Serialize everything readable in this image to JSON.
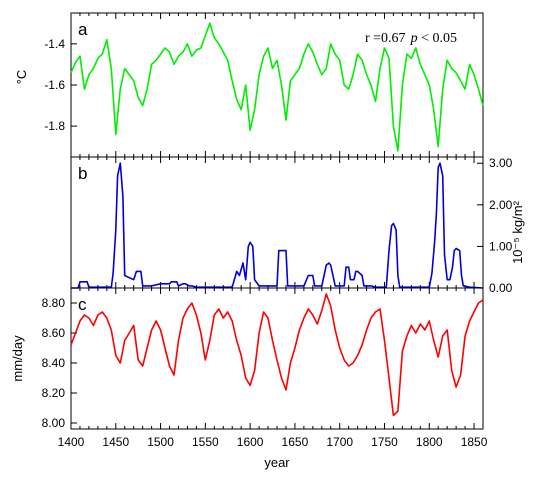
{
  "chart_data": {
    "type": "line",
    "x_axis": {
      "label": "year",
      "range": [
        1400,
        1860
      ],
      "ticks": [
        1400,
        1450,
        1500,
        1550,
        1600,
        1650,
        1700,
        1750,
        1800,
        1850
      ]
    },
    "panels": [
      {
        "letter": "a",
        "ylabel": "°C",
        "ylabel_side": "left",
        "ylim": [
          -1.95,
          -1.25
        ],
        "yticks": [
          -1.4,
          -1.6,
          -1.8
        ],
        "yticklabels": [
          "-1.4",
          "-1.6",
          "-1.8"
        ],
        "annotation": {
          "r": "r =0.67",
          "p": "p",
          "rest": " < 0.05"
        },
        "color": "#00ee00",
        "series": {
          "x": [
            1400,
            1405,
            1410,
            1415,
            1420,
            1425,
            1430,
            1435,
            1440,
            1445,
            1450,
            1455,
            1460,
            1465,
            1470,
            1475,
            1480,
            1485,
            1490,
            1495,
            1500,
            1505,
            1510,
            1515,
            1520,
            1525,
            1530,
            1535,
            1540,
            1545,
            1550,
            1555,
            1560,
            1565,
            1570,
            1575,
            1580,
            1585,
            1590,
            1595,
            1600,
            1605,
            1610,
            1615,
            1620,
            1625,
            1630,
            1635,
            1640,
            1645,
            1650,
            1655,
            1660,
            1665,
            1670,
            1675,
            1680,
            1685,
            1690,
            1695,
            1700,
            1705,
            1710,
            1715,
            1720,
            1725,
            1730,
            1735,
            1740,
            1745,
            1750,
            1755,
            1760,
            1765,
            1770,
            1775,
            1780,
            1785,
            1790,
            1795,
            1800,
            1805,
            1810,
            1815,
            1820,
            1825,
            1830,
            1835,
            1840,
            1845,
            1850,
            1855,
            1860
          ],
          "values": [
            -1.54,
            -1.49,
            -1.46,
            -1.62,
            -1.55,
            -1.52,
            -1.47,
            -1.45,
            -1.38,
            -1.52,
            -1.84,
            -1.62,
            -1.52,
            -1.55,
            -1.58,
            -1.66,
            -1.7,
            -1.62,
            -1.5,
            -1.48,
            -1.45,
            -1.42,
            -1.44,
            -1.5,
            -1.46,
            -1.44,
            -1.4,
            -1.46,
            -1.43,
            -1.42,
            -1.36,
            -1.3,
            -1.37,
            -1.4,
            -1.44,
            -1.48,
            -1.58,
            -1.67,
            -1.72,
            -1.6,
            -1.82,
            -1.72,
            -1.55,
            -1.46,
            -1.42,
            -1.52,
            -1.48,
            -1.6,
            -1.77,
            -1.58,
            -1.55,
            -1.52,
            -1.45,
            -1.4,
            -1.44,
            -1.5,
            -1.55,
            -1.52,
            -1.4,
            -1.45,
            -1.48,
            -1.6,
            -1.62,
            -1.55,
            -1.45,
            -1.48,
            -1.55,
            -1.6,
            -1.68,
            -1.52,
            -1.42,
            -1.47,
            -1.8,
            -1.92,
            -1.6,
            -1.45,
            -1.47,
            -1.42,
            -1.5,
            -1.55,
            -1.6,
            -1.72,
            -1.9,
            -1.62,
            -1.48,
            -1.52,
            -1.54,
            -1.58,
            -1.62,
            -1.5,
            -1.55,
            -1.62,
            -1.7
          ]
        }
      },
      {
        "letter": "b",
        "ylabel": "10⁻⁵ kg/m²",
        "ylabel_side": "right",
        "ylim": [
          0,
          3.15
        ],
        "yticks": [
          0,
          1,
          2,
          3
        ],
        "yticklabels": [
          "0.00",
          "1.00",
          "2.00",
          "3.00"
        ],
        "color": "#0000dd",
        "series": {
          "x": [
            1400,
            1408,
            1410,
            1418,
            1420,
            1445,
            1447,
            1450,
            1452,
            1455,
            1458,
            1460,
            1470,
            1473,
            1478,
            1480,
            1490,
            1500,
            1510,
            1512,
            1518,
            1520,
            1525,
            1528,
            1532,
            1535,
            1540,
            1580,
            1585,
            1588,
            1592,
            1595,
            1598,
            1600,
            1603,
            1605,
            1610,
            1630,
            1632,
            1640,
            1642,
            1650,
            1660,
            1665,
            1670,
            1672,
            1680,
            1685,
            1688,
            1690,
            1695,
            1697,
            1705,
            1707,
            1710,
            1712,
            1716,
            1718,
            1720,
            1725,
            1727,
            1735,
            1740,
            1752,
            1755,
            1758,
            1760,
            1763,
            1765,
            1767,
            1770,
            1775,
            1800,
            1803,
            1806,
            1808,
            1810,
            1812,
            1815,
            1817,
            1820,
            1823,
            1826,
            1828,
            1830,
            1834,
            1836,
            1838,
            1845,
            1860
          ],
          "values": [
            0.0,
            0.0,
            0.15,
            0.15,
            0.02,
            0.02,
            0.35,
            1.4,
            2.7,
            3.0,
            2.2,
            0.3,
            0.2,
            0.4,
            0.4,
            0.05,
            0.05,
            0.1,
            0.1,
            0.15,
            0.15,
            0.05,
            0.1,
            0.1,
            0.05,
            0.05,
            0.02,
            0.02,
            0.4,
            0.3,
            0.6,
            0.2,
            1.0,
            1.1,
            1.0,
            0.2,
            0.05,
            0.05,
            0.9,
            0.9,
            0.05,
            0.05,
            0.05,
            0.3,
            0.3,
            0.05,
            0.05,
            0.55,
            0.6,
            0.55,
            0.05,
            0.05,
            0.05,
            0.5,
            0.5,
            0.2,
            0.2,
            0.4,
            0.4,
            0.3,
            0.05,
            0.05,
            0.02,
            0.02,
            0.9,
            1.5,
            1.55,
            1.4,
            0.3,
            0.02,
            0.02,
            0.02,
            0.02,
            0.35,
            1.1,
            1.8,
            2.9,
            3.0,
            2.7,
            0.8,
            0.2,
            0.2,
            0.5,
            0.9,
            0.95,
            0.9,
            0.3,
            0.05,
            0.02,
            0.0
          ]
        }
      },
      {
        "letter": "c",
        "ylabel": "mm/day",
        "ylabel_side": "left",
        "ylim": [
          7.96,
          8.9
        ],
        "yticks": [
          8.0,
          8.2,
          8.4,
          8.6,
          8.8
        ],
        "yticklabels": [
          "8.00",
          "8.20",
          "8.40",
          "8.60",
          "8.80"
        ],
        "color": "#ff0000",
        "series": {
          "x": [
            1400,
            1405,
            1410,
            1415,
            1420,
            1425,
            1430,
            1435,
            1440,
            1445,
            1450,
            1455,
            1460,
            1465,
            1470,
            1475,
            1480,
            1485,
            1490,
            1495,
            1500,
            1505,
            1510,
            1515,
            1520,
            1525,
            1530,
            1535,
            1540,
            1545,
            1550,
            1555,
            1560,
            1565,
            1570,
            1575,
            1580,
            1585,
            1590,
            1595,
            1600,
            1605,
            1610,
            1615,
            1620,
            1625,
            1630,
            1635,
            1640,
            1645,
            1650,
            1655,
            1660,
            1665,
            1670,
            1675,
            1680,
            1685,
            1690,
            1695,
            1700,
            1705,
            1710,
            1715,
            1720,
            1725,
            1730,
            1735,
            1740,
            1745,
            1750,
            1755,
            1760,
            1765,
            1770,
            1775,
            1780,
            1785,
            1790,
            1795,
            1800,
            1805,
            1810,
            1815,
            1820,
            1825,
            1830,
            1835,
            1840,
            1845,
            1850,
            1855,
            1860
          ],
          "values": [
            8.52,
            8.6,
            8.68,
            8.72,
            8.7,
            8.65,
            8.72,
            8.74,
            8.7,
            8.62,
            8.45,
            8.4,
            8.55,
            8.6,
            8.65,
            8.42,
            8.38,
            8.5,
            8.62,
            8.68,
            8.62,
            8.5,
            8.38,
            8.32,
            8.55,
            8.7,
            8.76,
            8.8,
            8.72,
            8.6,
            8.42,
            8.55,
            8.72,
            8.76,
            8.7,
            8.74,
            8.68,
            8.55,
            8.45,
            8.3,
            8.25,
            8.35,
            8.6,
            8.74,
            8.7,
            8.55,
            8.42,
            8.3,
            8.22,
            8.4,
            8.5,
            8.62,
            8.7,
            8.76,
            8.72,
            8.66,
            8.75,
            8.86,
            8.78,
            8.62,
            8.5,
            8.42,
            8.38,
            8.4,
            8.45,
            8.52,
            8.62,
            8.7,
            8.74,
            8.76,
            8.55,
            8.3,
            8.05,
            8.08,
            8.48,
            8.58,
            8.65,
            8.6,
            8.66,
            8.62,
            8.68,
            8.55,
            8.44,
            8.58,
            8.62,
            8.35,
            8.24,
            8.32,
            8.58,
            8.68,
            8.74,
            8.8,
            8.82
          ]
        }
      }
    ]
  }
}
